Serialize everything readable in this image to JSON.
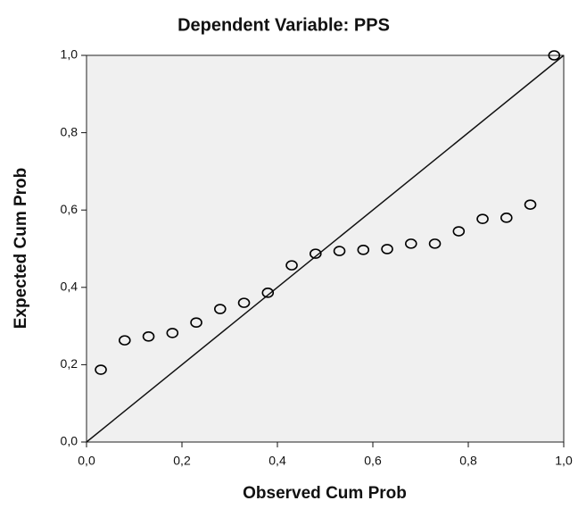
{
  "chart_data": {
    "type": "scatter",
    "title": "Dependent Variable: PPS",
    "x_label": "Observed Cum Prob",
    "y_label": "Expected Cum Prob",
    "x": [
      0.03,
      0.08,
      0.13,
      0.18,
      0.23,
      0.28,
      0.33,
      0.38,
      0.43,
      0.48,
      0.53,
      0.58,
      0.63,
      0.68,
      0.73,
      0.78,
      0.83,
      0.88,
      0.93,
      0.98
    ],
    "values": [
      0.187,
      0.263,
      0.273,
      0.282,
      0.309,
      0.344,
      0.36,
      0.386,
      0.457,
      0.487,
      0.494,
      0.497,
      0.499,
      0.513,
      0.513,
      0.545,
      0.577,
      0.58,
      0.614,
      1.0
    ],
    "color": "#000000",
    "xlim": [
      0,
      1
    ],
    "ylim": [
      0,
      1
    ],
    "xticks": [
      {
        "value": 0,
        "label": "0,0"
      },
      {
        "value": 0.2,
        "label": "0,2"
      },
      {
        "value": 0.4,
        "label": "0,4"
      },
      {
        "value": 0.6,
        "label": "0,6"
      },
      {
        "value": 0.8,
        "label": "0,8"
      },
      {
        "value": 1,
        "label": "1,0"
      }
    ],
    "yticks": [
      {
        "value": 0,
        "label": "0,0"
      },
      {
        "value": 0.2,
        "label": "0,2"
      },
      {
        "value": 0.4,
        "label": "0,4"
      },
      {
        "value": 0.6,
        "label": "0,6"
      },
      {
        "value": 0.8,
        "label": "0,8"
      },
      {
        "value": 1,
        "label": "1,0"
      }
    ]
  }
}
